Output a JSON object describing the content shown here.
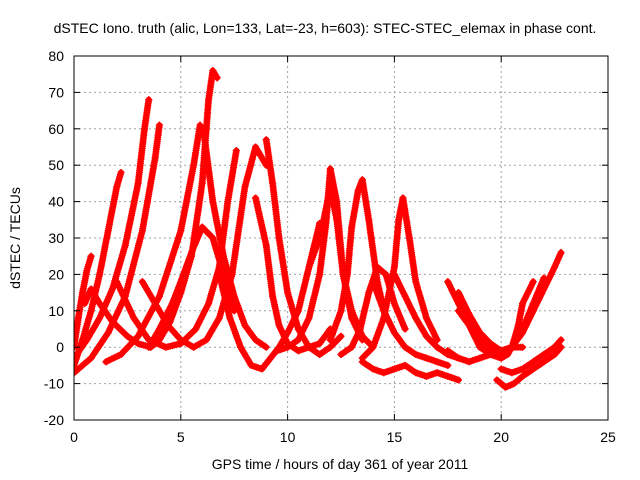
{
  "chart_data": {
    "type": "scatter",
    "title": "dSTEC Iono. truth (alic, Lon=133, Lat=-23, h=603): STEC-STEC_elemax in phase cont.",
    "xlabel": "GPS time / hours of day 361 of year 2011",
    "ylabel": "dSTEC  / TECUs",
    "xlim": [
      0,
      25
    ],
    "ylim": [
      -20,
      80
    ],
    "xticks": [
      0,
      5,
      10,
      15,
      20,
      25
    ],
    "yticks": [
      -20,
      -10,
      0,
      10,
      20,
      30,
      40,
      50,
      60,
      70,
      80
    ],
    "grid": true,
    "marker": "+",
    "color": "#ff0000",
    "series": [
      {
        "x": [
          0.0,
          0.2,
          0.4,
          0.6,
          0.8
        ],
        "y": [
          0,
          8,
          15,
          21,
          25
        ]
      },
      {
        "x": [
          0.0,
          0.4,
          0.8,
          1.2,
          1.6,
          2.0,
          2.2
        ],
        "y": [
          -5,
          2,
          10,
          20,
          32,
          44,
          48
        ]
      },
      {
        "x": [
          0.0,
          0.6,
          1.2,
          1.8,
          2.4,
          3.0,
          3.3,
          3.5
        ],
        "y": [
          -3,
          2,
          8,
          16,
          28,
          45,
          60,
          68
        ]
      },
      {
        "x": [
          0.0,
          0.8,
          1.6,
          2.4,
          3.2,
          3.8,
          4.0
        ],
        "y": [
          -7,
          -3,
          4,
          14,
          32,
          52,
          61
        ]
      },
      {
        "x": [
          0.5,
          0.8,
          1.2,
          1.8,
          2.5,
          3.0,
          3.6,
          4.0,
          4.5,
          5.0,
          5.5,
          6.0,
          6.3,
          6.5,
          6.7
        ],
        "y": [
          12,
          16,
          12,
          7,
          3,
          1,
          0,
          2,
          7,
          15,
          25,
          45,
          68,
          76,
          74
        ]
      },
      {
        "x": [
          1.5,
          2.2,
          3.0,
          4.0,
          5.0,
          5.6,
          5.9,
          6.1,
          6.5,
          7.0,
          7.5,
          8.0,
          8.5,
          9.0
        ],
        "y": [
          -4,
          -2,
          3,
          14,
          32,
          50,
          61,
          58,
          40,
          25,
          14,
          6,
          2,
          0
        ]
      },
      {
        "x": [
          3.5,
          4.0,
          4.6,
          5.0,
          5.5,
          6.0,
          6.5,
          7.0,
          7.5
        ],
        "y": [
          0,
          5,
          12,
          18,
          26,
          33,
          30,
          20,
          10
        ]
      },
      {
        "x": [
          2.0,
          2.8,
          3.5,
          4.3,
          5.0,
          5.7,
          6.3,
          6.8,
          7.2,
          7.6
        ],
        "y": [
          18,
          8,
          2,
          0,
          1,
          5,
          12,
          22,
          40,
          54
        ]
      },
      {
        "x": [
          3.2,
          3.8,
          4.4,
          5.0,
          5.6,
          6.2,
          6.8,
          7.4,
          8.0,
          8.5,
          9.0
        ],
        "y": [
          18,
          12,
          6,
          2,
          0,
          2,
          8,
          20,
          44,
          55,
          50
        ]
      },
      {
        "x": [
          6.8,
          7.3,
          7.8,
          8.3,
          8.8,
          9.2,
          9.6,
          10.0,
          10.5,
          11.0,
          11.5
        ],
        "y": [
          20,
          8,
          0,
          -5,
          -6,
          -3,
          0,
          4,
          10,
          22,
          34
        ]
      },
      {
        "x": [
          8.5,
          9.0,
          9.3,
          9.6,
          10.0,
          10.5,
          11.0,
          11.5,
          12.0
        ],
        "y": [
          41,
          28,
          14,
          6,
          1,
          -1,
          0,
          1,
          5
        ]
      },
      {
        "x": [
          9.0,
          9.3,
          9.6,
          10.0,
          10.5,
          11.0,
          11.5,
          12.0,
          12.5
        ],
        "y": [
          57,
          45,
          30,
          15,
          5,
          0,
          -2,
          0,
          3
        ]
      },
      {
        "x": [
          9.5,
          10.0,
          10.5,
          11.0,
          11.5,
          11.8,
          12.0,
          12.3,
          12.6,
          13.0,
          13.5
        ],
        "y": [
          -1,
          0,
          2,
          8,
          20,
          34,
          49,
          40,
          20,
          8,
          2
        ]
      },
      {
        "x": [
          11.0,
          11.5,
          11.8,
          12.0,
          12.3,
          12.6,
          13.0,
          13.5,
          14.0
        ],
        "y": [
          22,
          30,
          38,
          44,
          35,
          20,
          10,
          3,
          0
        ]
      },
      {
        "x": [
          12.0,
          12.5,
          12.8,
          13.0,
          13.3,
          13.5,
          13.8,
          14.2,
          14.6
        ],
        "y": [
          2,
          10,
          20,
          33,
          43,
          46,
          35,
          18,
          8
        ]
      },
      {
        "x": [
          12.5,
          13.0,
          13.4,
          13.8,
          14.2,
          14.6,
          15.0,
          15.5
        ],
        "y": [
          -2,
          0,
          5,
          15,
          22,
          20,
          12,
          5
        ]
      },
      {
        "x": [
          13.5,
          14.0,
          14.5,
          15.0,
          15.2,
          15.4,
          15.7,
          16.0,
          16.5,
          17.0
        ],
        "y": [
          -3,
          0,
          8,
          22,
          35,
          41,
          30,
          18,
          8,
          2
        ]
      },
      {
        "x": [
          14.0,
          14.5,
          15.0,
          15.5,
          16.0,
          16.5,
          17.0,
          17.5
        ],
        "y": [
          18,
          10,
          4,
          0,
          -2,
          -3,
          -4,
          -5
        ]
      },
      {
        "x": [
          15.0,
          15.5,
          16.0,
          16.5,
          17.0,
          17.5,
          18.0
        ],
        "y": [
          20,
          14,
          8,
          3,
          0,
          -2,
          -3
        ]
      },
      {
        "x": [
          13.5,
          14.0,
          14.5,
          15.0,
          15.5,
          16.0,
          16.5,
          17.0,
          17.5,
          18.0
        ],
        "y": [
          -4,
          -6,
          -7,
          -6,
          -5,
          -7,
          -8,
          -7,
          -8,
          -9
        ]
      },
      {
        "x": [
          17.5,
          18.0,
          18.5,
          19.0,
          19.5,
          20.0,
          20.5,
          21.0,
          21.5,
          22.0,
          22.5,
          22.8
        ],
        "y": [
          18,
          12,
          6,
          2,
          -1,
          -2,
          0,
          4,
          10,
          16,
          22,
          26
        ]
      },
      {
        "x": [
          18.0,
          18.5,
          19.0,
          19.5,
          20.0,
          20.5,
          21.0,
          21.5,
          22.0
        ],
        "y": [
          15,
          9,
          4,
          1,
          -1,
          0,
          5,
          12,
          19
        ]
      },
      {
        "x": [
          18.0,
          18.5,
          19.0,
          19.5,
          20.0,
          20.3,
          20.5,
          20.8,
          21.0,
          21.5
        ],
        "y": [
          10,
          6,
          0,
          -2,
          -3,
          -2,
          0,
          6,
          12,
          18
        ]
      },
      {
        "x": [
          17.5,
          18.0,
          18.5,
          19.0,
          19.5,
          20.0,
          20.5,
          21.0
        ],
        "y": [
          -1,
          -3,
          -4,
          -3,
          -2,
          -1,
          0,
          0
        ]
      },
      {
        "x": [
          19.8,
          20.2,
          20.6,
          21.0,
          21.5,
          22.0,
          22.5,
          22.8
        ],
        "y": [
          -9,
          -11,
          -10,
          -8,
          -6,
          -4,
          -2,
          0
        ]
      },
      {
        "x": [
          20.0,
          20.5,
          21.0,
          21.5,
          22.0,
          22.5,
          22.8
        ],
        "y": [
          -6,
          -7,
          -6,
          -4,
          -2,
          0,
          2
        ]
      }
    ]
  }
}
